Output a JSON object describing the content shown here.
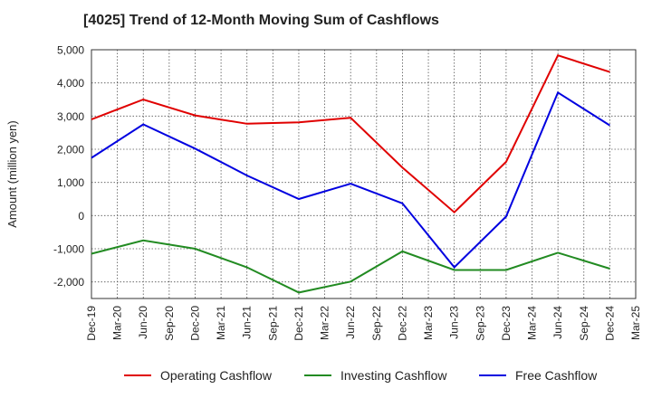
{
  "chart_data": {
    "type": "line",
    "title": "[4025]  Trend of 12-Month Moving Sum of Cashflows",
    "xlabel": "",
    "ylabel": "Amount (million yen)",
    "ylim": [
      -2500,
      5000
    ],
    "yticks": [
      5000,
      4000,
      3000,
      2000,
      1000,
      0,
      -1000,
      -2000
    ],
    "ytick_labels": [
      "5,000",
      "4,000",
      "3,000",
      "2,000",
      "1,000",
      "0",
      "-1,000",
      "-2,000"
    ],
    "categories": [
      "Dec-19",
      "Mar-20",
      "Jun-20",
      "Sep-20",
      "Dec-20",
      "Mar-21",
      "Jun-21",
      "Sep-21",
      "Dec-21",
      "Mar-22",
      "Jun-22",
      "Sep-22",
      "Dec-22",
      "Mar-23",
      "Jun-23",
      "Sep-23",
      "Dec-23",
      "Mar-24",
      "Jun-24",
      "Sep-24",
      "Dec-24",
      "Mar-25"
    ],
    "grid": true,
    "legend_position": "bottom",
    "series": [
      {
        "name": "Operating Cashflow",
        "color": "#e00000",
        "values": [
          2900,
          null,
          3500,
          null,
          3020,
          null,
          2770,
          null,
          2810,
          null,
          2950,
          null,
          1450,
          null,
          100,
          null,
          1620,
          null,
          4830,
          null,
          4330,
          null
        ]
      },
      {
        "name": "Investing Cashflow",
        "color": "#228b22",
        "values": [
          -1150,
          null,
          -750,
          null,
          -1000,
          null,
          -1560,
          null,
          -2320,
          null,
          -1990,
          null,
          -1080,
          null,
          -1640,
          null,
          -1640,
          null,
          -1120,
          null,
          -1600,
          null
        ]
      },
      {
        "name": "Free Cashflow",
        "color": "#0000e0",
        "values": [
          1740,
          null,
          2750,
          null,
          2020,
          null,
          1210,
          null,
          500,
          null,
          960,
          null,
          370,
          null,
          -1560,
          null,
          -30,
          null,
          3710,
          null,
          2720,
          null
        ]
      }
    ]
  }
}
